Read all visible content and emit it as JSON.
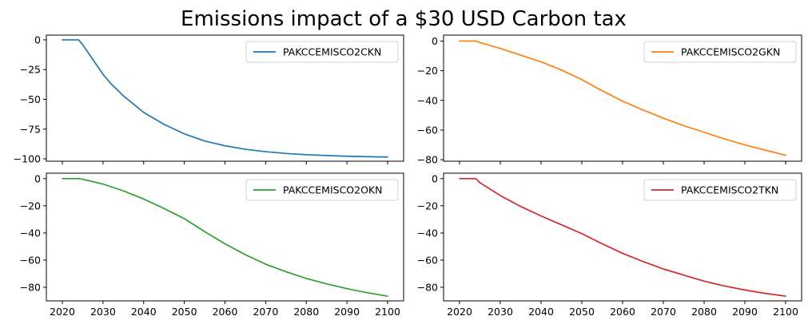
{
  "title": "Emissions impact of a $30 USD Carbon tax",
  "chart_data": [
    {
      "type": "line",
      "position": "top-left",
      "xlim": [
        2020,
        2100
      ],
      "ylim": [
        -102,
        4
      ],
      "xticks": [
        2020,
        2030,
        2040,
        2050,
        2060,
        2070,
        2080,
        2090,
        2100
      ],
      "show_xtick_labels": false,
      "yticks": [
        0,
        -25,
        -50,
        -75,
        -100
      ],
      "ytick_labels": [
        "0",
        "−25",
        "−50",
        "−75",
        "−100"
      ],
      "legend_position": "top-right",
      "series": [
        {
          "name": "PAKCCEMISCO2CKN",
          "color": "#1f77b4",
          "x": [
            2020,
            2022,
            2024,
            2025,
            2026,
            2028,
            2030,
            2032,
            2035,
            2040,
            2045,
            2050,
            2055,
            2060,
            2065,
            2070,
            2075,
            2080,
            2085,
            2090,
            2095,
            2100
          ],
          "y": [
            0,
            0,
            0,
            -4,
            -9,
            -19,
            -29,
            -37,
            -47,
            -61,
            -71,
            -79,
            -85,
            -89,
            -92,
            -94,
            -95.5,
            -96.5,
            -97.2,
            -97.8,
            -98.2,
            -98.5
          ]
        }
      ]
    },
    {
      "type": "line",
      "position": "top-right",
      "xlim": [
        2020,
        2100
      ],
      "ylim": [
        -81,
        4
      ],
      "xticks": [
        2020,
        2030,
        2040,
        2050,
        2060,
        2070,
        2080,
        2090,
        2100
      ],
      "show_xtick_labels": false,
      "yticks": [
        0,
        -20,
        -40,
        -60,
        -80
      ],
      "ytick_labels": [
        "0",
        "−20",
        "−40",
        "−60",
        "−80"
      ],
      "legend_position": "top-right",
      "series": [
        {
          "name": "PAKCCEMISCO2GKN",
          "color": "#ff7f0e",
          "x": [
            2020,
            2022,
            2024,
            2025,
            2030,
            2035,
            2040,
            2045,
            2050,
            2055,
            2060,
            2065,
            2070,
            2075,
            2080,
            2085,
            2090,
            2095,
            2100
          ],
          "y": [
            0,
            0,
            0,
            -1,
            -5,
            -9.5,
            -14,
            -19.5,
            -26,
            -33.5,
            -40.5,
            -46.5,
            -52,
            -57,
            -61.5,
            -66,
            -70,
            -73.5,
            -77
          ]
        }
      ]
    },
    {
      "type": "line",
      "position": "bottom-left",
      "xlim": [
        2020,
        2100
      ],
      "ylim": [
        -90,
        4
      ],
      "xticks": [
        2020,
        2030,
        2040,
        2050,
        2060,
        2070,
        2080,
        2090,
        2100
      ],
      "xtick_labels": [
        "2020",
        "2030",
        "2040",
        "2050",
        "2060",
        "2070",
        "2080",
        "2090",
        "2100"
      ],
      "show_xtick_labels": true,
      "yticks": [
        0,
        -20,
        -40,
        -60,
        -80
      ],
      "ytick_labels": [
        "0",
        "−20",
        "−40",
        "−60",
        "−80"
      ],
      "legend_position": "top-right",
      "series": [
        {
          "name": "PAKCCEMISCO2OKN",
          "color": "#2ca02c",
          "x": [
            2020,
            2022,
            2024,
            2025,
            2030,
            2035,
            2040,
            2045,
            2050,
            2055,
            2060,
            2065,
            2070,
            2075,
            2080,
            2085,
            2090,
            2095,
            2100
          ],
          "y": [
            0,
            0,
            0,
            -0.5,
            -4,
            -9,
            -15,
            -22,
            -29.5,
            -39,
            -48,
            -56,
            -63,
            -68.5,
            -73.5,
            -77.5,
            -81,
            -84,
            -86.5
          ]
        }
      ]
    },
    {
      "type": "line",
      "position": "bottom-right",
      "xlim": [
        2020,
        2100
      ],
      "ylim": [
        -90,
        4
      ],
      "xticks": [
        2020,
        2030,
        2040,
        2050,
        2060,
        2070,
        2080,
        2090,
        2100
      ],
      "xtick_labels": [
        "2020",
        "2030",
        "2040",
        "2050",
        "2060",
        "2070",
        "2080",
        "2090",
        "2100"
      ],
      "show_xtick_labels": true,
      "yticks": [
        0,
        -20,
        -40,
        -60,
        -80
      ],
      "ytick_labels": [
        "0",
        "−20",
        "−40",
        "−60",
        "−80"
      ],
      "legend_position": "top-right",
      "series": [
        {
          "name": "PAKCCEMISCO2TKN",
          "color": "#d62728",
          "x": [
            2020,
            2022,
            2024,
            2025,
            2030,
            2035,
            2040,
            2045,
            2050,
            2055,
            2060,
            2065,
            2070,
            2075,
            2080,
            2085,
            2090,
            2095,
            2100
          ],
          "y": [
            0,
            0,
            0,
            -3,
            -12.5,
            -20.5,
            -27.5,
            -34,
            -40.5,
            -48,
            -55,
            -61,
            -66.5,
            -71,
            -75.5,
            -79,
            -82,
            -84.5,
            -86.5
          ]
        }
      ]
    }
  ]
}
